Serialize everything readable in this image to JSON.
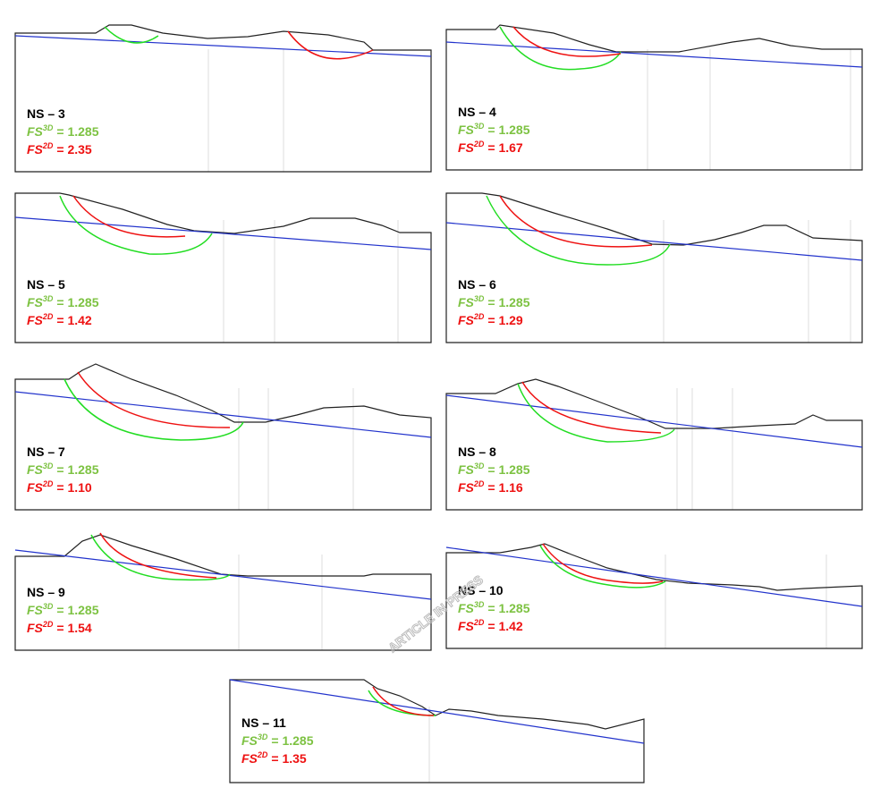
{
  "panels": [
    {
      "name": "NS – 3",
      "fs3d": {
        "symbol": "FS",
        "superscript": "3D",
        "value": "= 1.285"
      },
      "fs2d": {
        "symbol": "FS",
        "superscript": "2D",
        "value": "= 2.35"
      }
    },
    {
      "name": "NS – 4",
      "fs3d": {
        "symbol": "FS",
        "superscript": "3D",
        "value": "= 1.285"
      },
      "fs2d": {
        "symbol": "FS",
        "superscript": "2D",
        "value": "= 1.67"
      }
    },
    {
      "name": "NS – 5",
      "fs3d": {
        "symbol": "FS",
        "superscript": "3D",
        "value": "= 1.285"
      },
      "fs2d": {
        "symbol": "FS",
        "superscript": "2D",
        "value": "= 1.42"
      }
    },
    {
      "name": "NS – 6",
      "fs3d": {
        "symbol": "FS",
        "superscript": "3D",
        "value": "= 1.285"
      },
      "fs2d": {
        "symbol": "FS",
        "superscript": "2D",
        "value": "= 1.29"
      }
    },
    {
      "name": "NS – 7",
      "fs3d": {
        "symbol": "FS",
        "superscript": "3D",
        "value": "= 1.285"
      },
      "fs2d": {
        "symbol": "FS",
        "superscript": "2D",
        "value": "= 1.10"
      }
    },
    {
      "name": "NS – 8",
      "fs3d": {
        "symbol": "FS",
        "superscript": "3D",
        "value": "= 1.285"
      },
      "fs2d": {
        "symbol": "FS",
        "superscript": "2D",
        "value": "= 1.16"
      }
    },
    {
      "name": "NS – 9",
      "fs3d": {
        "symbol": "FS",
        "superscript": "3D",
        "value": "= 1.285"
      },
      "fs2d": {
        "symbol": "FS",
        "superscript": "2D",
        "value": "= 1.54"
      }
    },
    {
      "name": "NS – 10",
      "fs3d": {
        "symbol": "FS",
        "superscript": "3D",
        "value": "= 1.285"
      },
      "fs2d": {
        "symbol": "FS",
        "superscript": "2D",
        "value": "= 1.42"
      }
    },
    {
      "name": "NS – 11",
      "fs3d": {
        "symbol": "FS",
        "superscript": "3D",
        "value": "= 1.285"
      },
      "fs2d": {
        "symbol": "FS",
        "superscript": "2D",
        "value": "= 1.35"
      }
    }
  ],
  "watermark": "ARTICLE IN PRESS"
}
